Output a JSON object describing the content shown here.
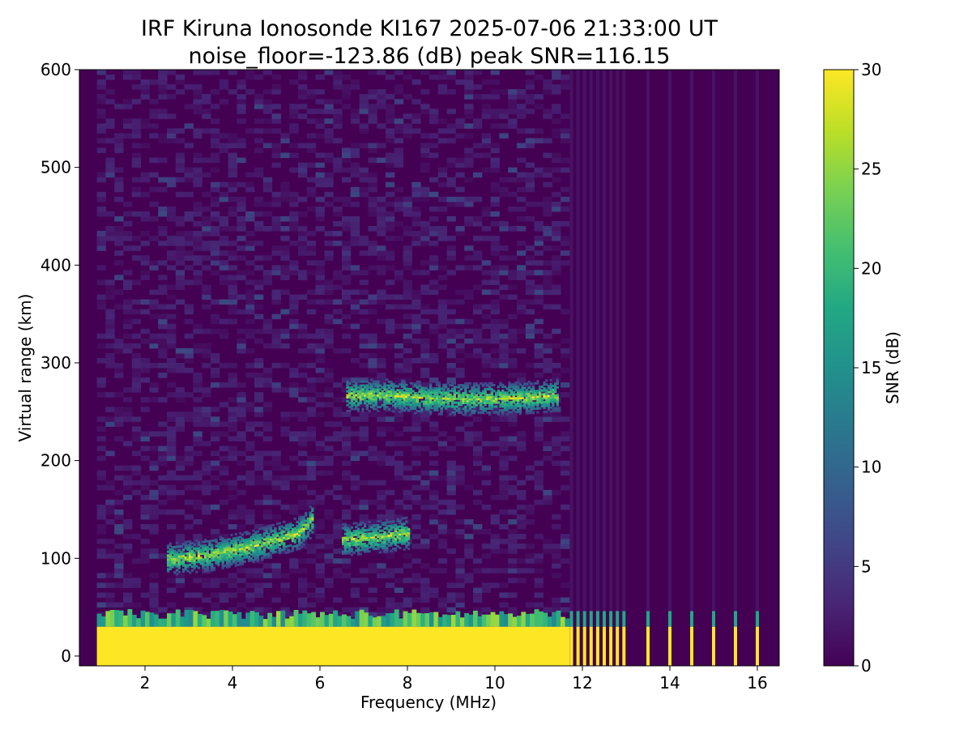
{
  "chart_data": {
    "type": "heatmap",
    "title": "IRF Kiruna Ionosonde KI167 2025-07-06 21:33:00  UT",
    "subtitle": "noise_floor=-123.86 (dB) peak SNR=116.15",
    "xlabel": "Frequency (MHz)",
    "ylabel": "Virtual range (km)",
    "xlim": [
      0.5,
      16.5
    ],
    "ylim": [
      -10,
      600
    ],
    "xticks": [
      2,
      4,
      6,
      8,
      10,
      12,
      14,
      16
    ],
    "yticks": [
      0,
      100,
      200,
      300,
      400,
      500,
      600
    ],
    "colorbar": {
      "label": "SNR (dB)",
      "range": [
        0,
        30
      ],
      "ticks": [
        0,
        5,
        10,
        15,
        20,
        25,
        30
      ],
      "colormap": "viridis"
    },
    "data_start_freq": 0.9,
    "dense_end_freq": 11.65,
    "sparse_channels": [
      11.75,
      11.9,
      12.05,
      12.2,
      12.35,
      12.5,
      12.65,
      12.8,
      12.95,
      13.5,
      14.0,
      14.5,
      15.0,
      15.5,
      16.0
    ],
    "ground_echo_top_km": 30,
    "echo_traces": [
      {
        "layer": "E",
        "points": [
          [
            2.5,
            98
          ],
          [
            3.5,
            103
          ],
          [
            4.5,
            112
          ],
          [
            5.5,
            125
          ],
          [
            5.8,
            138
          ],
          [
            6.5,
            118
          ],
          [
            7.5,
            122
          ],
          [
            8.0,
            125
          ]
        ]
      },
      {
        "layer": "F",
        "points": [
          [
            6.6,
            266
          ],
          [
            7.5,
            266
          ],
          [
            8.5,
            263
          ],
          [
            9.5,
            262
          ],
          [
            10.5,
            263
          ],
          [
            11.4,
            266
          ]
        ]
      }
    ]
  }
}
